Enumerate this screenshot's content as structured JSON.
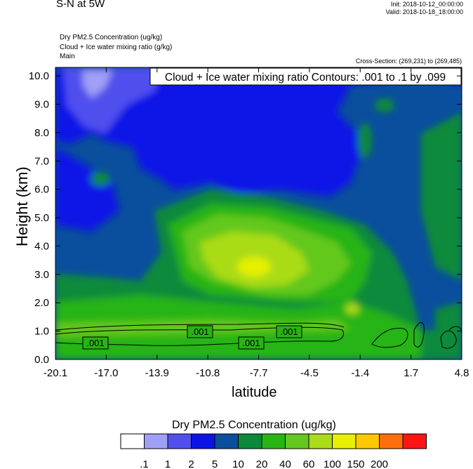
{
  "header": {
    "title": "S-N at 5W",
    "init": "Init: 2018-10-12_00:00:00",
    "valid": "Valid: 2018-10-18_18:00:00",
    "field1": "Dry PM2.5 Concentration   (ug/kg)",
    "field2": "Cloud + Ice water mixing ratio   (g/kg)",
    "field3": "Main",
    "cross_section": "Cross-Section: (269,231) to (269,485)"
  },
  "chart_data": {
    "type": "heatmap",
    "title": "Cloud + Ice water mixing ratio Contours: .001 to .1 by .099",
    "xlabel": "latitude",
    "ylabel": "Height (km)",
    "x_ticks": [
      "-20.1",
      "-17.0",
      "-13.9",
      "-10.8",
      "-7.7",
      "-4.5",
      "-1.4",
      "1.7",
      "4.8"
    ],
    "y_ticks": [
      "0.0",
      "1.0",
      "2.0",
      "3.0",
      "4.0",
      "5.0",
      "6.0",
      "7.0",
      "8.0",
      "9.0",
      "10.0"
    ],
    "xlim": [
      -20.1,
      4.8
    ],
    "ylim": [
      0,
      10.3
    ],
    "contour_labels": [
      ".001",
      ".001",
      ".001",
      ".001"
    ],
    "colorbar": {
      "title": "Dry PM2.5 Concentration  (ug/kg)",
      "levels": [
        ".1",
        "1",
        "2",
        "5",
        "10",
        "20",
        "40",
        "60",
        "100",
        "150",
        "200"
      ],
      "colors": [
        "#ffffff",
        "#a0a0f6",
        "#5050ee",
        "#0a14e6",
        "#0a4e9e",
        "#0a8a3a",
        "#28b414",
        "#64c81e",
        "#aadc18",
        "#e6f000",
        "#ffc800",
        "#ff6e0a",
        "#ff1414"
      ]
    }
  }
}
